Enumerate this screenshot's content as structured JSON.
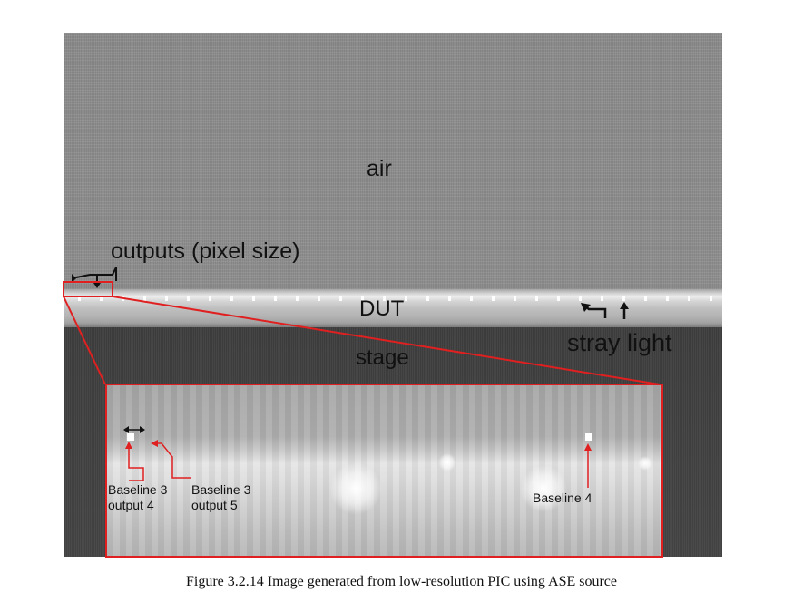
{
  "image_labels": {
    "air": "air",
    "outputs": "outputs (pixel size)",
    "dut": "DUT",
    "stage": "stage",
    "stray_light": "stray light"
  },
  "inset_labels": {
    "baseline3_output4_line1": "Baseline 3",
    "baseline3_output4_line2": "output 4",
    "baseline3_output5_line1": "Baseline 3",
    "baseline3_output5_line2": "output 5",
    "baseline4": "Baseline 4"
  },
  "caption": "Figure 3.2.14 Image generated from low-resolution PIC using ASE source",
  "colors": {
    "highlight_box": "#e02020",
    "annotation_arrow": "#e02020"
  }
}
